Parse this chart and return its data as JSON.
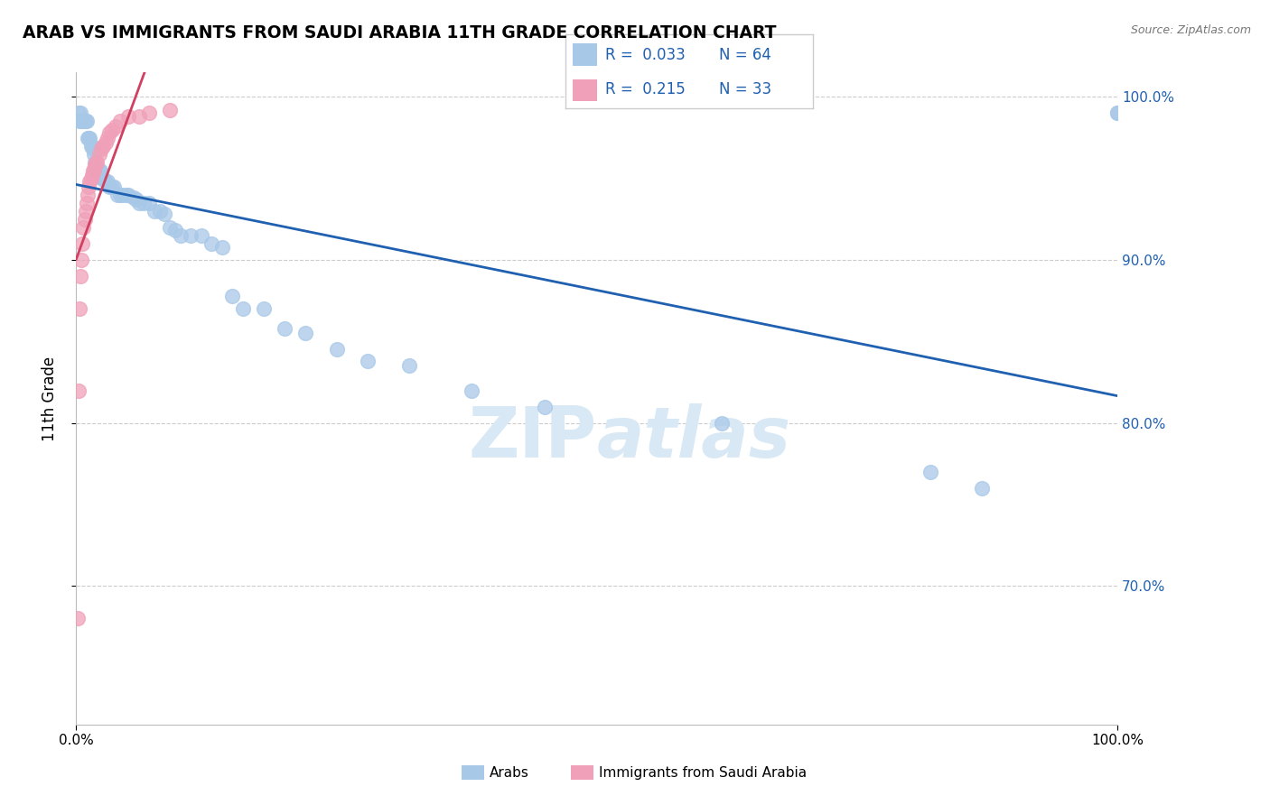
{
  "title": "ARAB VS IMMIGRANTS FROM SAUDI ARABIA 11TH GRADE CORRELATION CHART",
  "source_text": "Source: ZipAtlas.com",
  "ylabel": "11th Grade",
  "xlim": [
    0.0,
    1.0
  ],
  "ylim": [
    0.615,
    1.015
  ],
  "yticks_right_show": [
    0.7,
    0.8,
    0.9,
    1.0
  ],
  "yticks_right_labels": [
    "70.0%",
    "80.0%",
    "90.0%",
    "100.0%"
  ],
  "legend_r_arab": "0.033",
  "legend_n_arab": "64",
  "legend_r_imm": "0.215",
  "legend_n_imm": "33",
  "arab_color": "#a8c8e8",
  "imm_color": "#f0a0b8",
  "arab_line_color": "#2060b0",
  "imm_line_color": "#d04060",
  "arab_scatter_x": [
    0.002,
    0.003,
    0.004,
    0.005,
    0.006,
    0.007,
    0.008,
    0.009,
    0.01,
    0.011,
    0.012,
    0.013,
    0.014,
    0.015,
    0.016,
    0.017,
    0.018,
    0.019,
    0.02,
    0.021,
    0.022,
    0.023,
    0.025,
    0.026,
    0.028,
    0.03,
    0.032,
    0.034,
    0.036,
    0.04,
    0.042,
    0.045,
    0.048,
    0.05,
    0.055,
    0.058,
    0.06,
    0.065,
    0.07,
    0.075,
    0.08,
    0.085,
    0.09,
    0.095,
    0.1,
    0.11,
    0.12,
    0.13,
    0.14,
    0.15,
    0.16,
    0.18,
    0.2,
    0.22,
    0.25,
    0.28,
    0.32,
    0.38,
    0.45,
    0.62,
    0.82,
    0.87,
    1.0,
    1.0
  ],
  "arab_scatter_y": [
    0.99,
    0.985,
    0.99,
    0.985,
    0.985,
    0.985,
    0.985,
    0.985,
    0.985,
    0.975,
    0.975,
    0.975,
    0.97,
    0.97,
    0.968,
    0.965,
    0.96,
    0.958,
    0.955,
    0.955,
    0.955,
    0.955,
    0.95,
    0.95,
    0.948,
    0.948,
    0.945,
    0.945,
    0.945,
    0.94,
    0.94,
    0.94,
    0.94,
    0.94,
    0.938,
    0.937,
    0.935,
    0.935,
    0.935,
    0.93,
    0.93,
    0.928,
    0.92,
    0.918,
    0.915,
    0.915,
    0.915,
    0.91,
    0.908,
    0.878,
    0.87,
    0.87,
    0.858,
    0.855,
    0.845,
    0.838,
    0.835,
    0.82,
    0.81,
    0.8,
    0.77,
    0.76,
    0.99,
    0.99
  ],
  "imm_scatter_x": [
    0.001,
    0.002,
    0.003,
    0.004,
    0.005,
    0.006,
    0.007,
    0.008,
    0.009,
    0.01,
    0.011,
    0.012,
    0.013,
    0.014,
    0.015,
    0.016,
    0.017,
    0.018,
    0.019,
    0.02,
    0.022,
    0.024,
    0.026,
    0.028,
    0.03,
    0.032,
    0.034,
    0.038,
    0.042,
    0.05,
    0.06,
    0.07,
    0.09
  ],
  "imm_scatter_y": [
    0.68,
    0.82,
    0.87,
    0.89,
    0.9,
    0.91,
    0.92,
    0.925,
    0.93,
    0.935,
    0.94,
    0.945,
    0.948,
    0.95,
    0.952,
    0.955,
    0.955,
    0.958,
    0.96,
    0.96,
    0.965,
    0.968,
    0.97,
    0.972,
    0.975,
    0.978,
    0.98,
    0.982,
    0.985,
    0.988,
    0.988,
    0.99,
    0.992
  ]
}
